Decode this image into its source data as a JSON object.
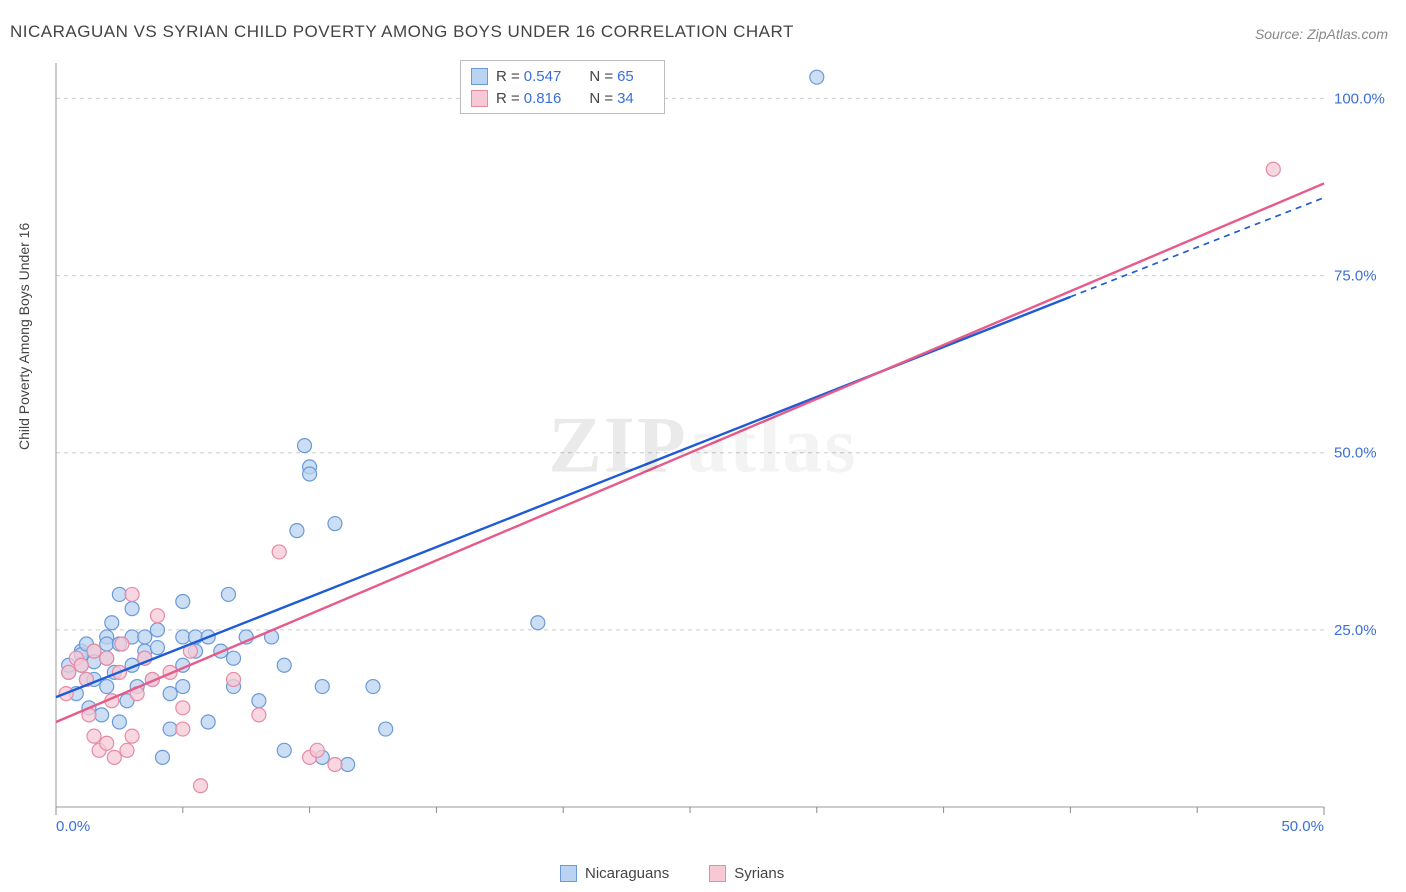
{
  "title": "NICARAGUAN VS SYRIAN CHILD POVERTY AMONG BOYS UNDER 16 CORRELATION CHART",
  "source": "Source: ZipAtlas.com",
  "ylabel": "Child Poverty Among Boys Under 16",
  "watermark_a": "ZIP",
  "watermark_b": "atlas",
  "chart": {
    "type": "scatter-with-regression",
    "background": "#ffffff",
    "grid_color": "#cccccc",
    "grid_dash": "4,4",
    "axis_color": "#9a9a9a",
    "tick_color": "#888888",
    "xlim": [
      0,
      50
    ],
    "ylim": [
      0,
      105
    ],
    "x_ticks_major": [
      0,
      50
    ],
    "x_ticks_minor": [
      5,
      10,
      15,
      20,
      25,
      30,
      35,
      40,
      45
    ],
    "y_ticks_major": [
      25,
      50,
      75,
      100
    ],
    "x_tick_labels": {
      "0": "0.0%",
      "50": "50.0%"
    },
    "y_tick_labels": {
      "25": "25.0%",
      "50": "50.0%",
      "75": "75.0%",
      "100": "100.0%"
    },
    "label_color": "#3b6fd8",
    "label_fontsize": 15,
    "marker_radius": 7,
    "marker_stroke_width": 1.2,
    "series": [
      {
        "name": "Nicaraguans",
        "fill": "#b9d3f0",
        "stroke": "#6a9ad8",
        "fill_opacity": 0.75,
        "regression": {
          "x1": 0,
          "y1": 15.5,
          "x2": 40,
          "y2": 72,
          "dash_x2": 50,
          "dash_y2": 86,
          "color": "#1f5bd6",
          "width": 2.4
        },
        "R": "0.547",
        "N": "65",
        "points": [
          [
            0.5,
            19
          ],
          [
            0.5,
            20
          ],
          [
            0.8,
            16
          ],
          [
            1,
            22
          ],
          [
            1,
            21.5
          ],
          [
            1,
            20
          ],
          [
            1.2,
            23
          ],
          [
            1.2,
            18
          ],
          [
            1.3,
            14
          ],
          [
            1.5,
            22
          ],
          [
            1.5,
            20.5
          ],
          [
            1.5,
            18
          ],
          [
            1.8,
            13
          ],
          [
            2,
            24
          ],
          [
            2,
            23
          ],
          [
            2,
            17
          ],
          [
            2,
            21
          ],
          [
            2.2,
            26
          ],
          [
            2.3,
            19
          ],
          [
            2.5,
            12
          ],
          [
            2.5,
            23
          ],
          [
            2.5,
            30
          ],
          [
            2.8,
            15
          ],
          [
            3,
            28
          ],
          [
            3,
            20
          ],
          [
            3,
            24
          ],
          [
            3.2,
            17
          ],
          [
            3.5,
            22
          ],
          [
            3.5,
            24
          ],
          [
            3.5,
            21
          ],
          [
            3.8,
            18
          ],
          [
            4,
            25
          ],
          [
            4,
            22.5
          ],
          [
            4.2,
            7
          ],
          [
            4.5,
            16
          ],
          [
            4.5,
            11
          ],
          [
            5,
            24
          ],
          [
            5,
            29
          ],
          [
            5,
            20
          ],
          [
            5,
            17
          ],
          [
            5.5,
            24
          ],
          [
            5.5,
            22
          ],
          [
            6,
            12
          ],
          [
            6,
            24
          ],
          [
            6.5,
            22
          ],
          [
            6.8,
            30
          ],
          [
            7,
            21
          ],
          [
            7,
            17
          ],
          [
            7.5,
            24
          ],
          [
            8,
            15
          ],
          [
            8.5,
            24
          ],
          [
            9,
            8
          ],
          [
            9,
            20
          ],
          [
            9.5,
            39
          ],
          [
            9.8,
            51
          ],
          [
            10,
            48
          ],
          [
            10,
            47
          ],
          [
            10.5,
            7
          ],
          [
            10.5,
            17
          ],
          [
            11,
            40
          ],
          [
            11.5,
            6
          ],
          [
            12.5,
            17
          ],
          [
            13,
            11
          ],
          [
            19,
            26
          ],
          [
            30,
            103
          ]
        ]
      },
      {
        "name": "Syrians",
        "fill": "#f6c9d5",
        "stroke": "#e78aa6",
        "fill_opacity": 0.75,
        "regression": {
          "x1": 0,
          "y1": 12,
          "x2": 50,
          "y2": 88,
          "color": "#e75a8a",
          "width": 2.4
        },
        "R": "0.816",
        "N": "34",
        "points": [
          [
            0.4,
            16
          ],
          [
            0.5,
            19
          ],
          [
            0.8,
            21
          ],
          [
            1,
            20
          ],
          [
            1.2,
            18
          ],
          [
            1.3,
            13
          ],
          [
            1.5,
            22
          ],
          [
            1.5,
            10
          ],
          [
            1.7,
            8
          ],
          [
            2,
            9
          ],
          [
            2,
            21
          ],
          [
            2.2,
            15
          ],
          [
            2.3,
            7
          ],
          [
            2.5,
            19
          ],
          [
            2.6,
            23
          ],
          [
            2.8,
            8
          ],
          [
            3,
            10
          ],
          [
            3,
            30
          ],
          [
            3.2,
            16
          ],
          [
            3.5,
            21
          ],
          [
            3.8,
            18
          ],
          [
            4,
            27
          ],
          [
            4.5,
            19
          ],
          [
            5,
            11
          ],
          [
            5,
            14
          ],
          [
            5.3,
            22
          ],
          [
            5.7,
            3
          ],
          [
            7,
            18
          ],
          [
            8,
            13
          ],
          [
            8.8,
            36
          ],
          [
            10,
            7
          ],
          [
            10.3,
            8
          ],
          [
            11,
            6
          ],
          [
            48,
            90
          ]
        ]
      }
    ]
  },
  "legend_top": [
    {
      "swatch_fill": "#b9d3f0",
      "swatch_stroke": "#6a9ad8",
      "R_label": "R =",
      "R": "0.547",
      "N_label": "N =",
      "N": "65"
    },
    {
      "swatch_fill": "#f6c9d5",
      "swatch_stroke": "#e78aa6",
      "R_label": "R =",
      "R": "0.816",
      "N_label": "N =",
      "N": "34"
    }
  ],
  "legend_bottom": [
    {
      "swatch_fill": "#b9d3f0",
      "swatch_stroke": "#6a9ad8",
      "label": "Nicaraguans"
    },
    {
      "swatch_fill": "#f6c9d5",
      "swatch_stroke": "#e78aa6",
      "label": "Syrians"
    }
  ]
}
